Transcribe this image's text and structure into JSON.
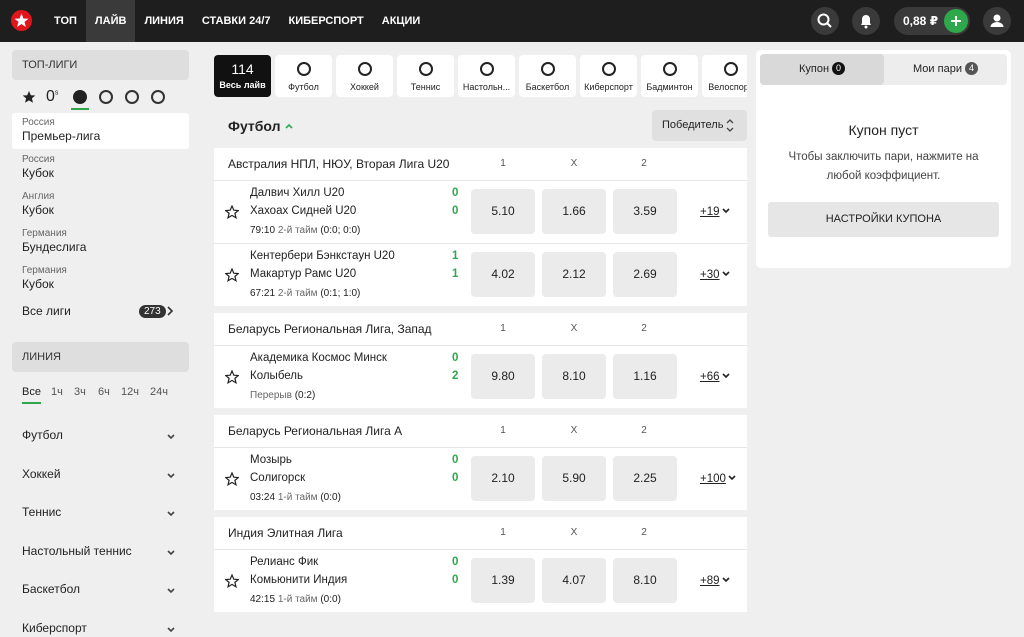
{
  "nav": {
    "items": [
      "ТОП",
      "ЛАЙВ",
      "ЛИНИЯ",
      "СТАВКИ 24/7",
      "КИБЕРСПОРТ",
      "АКЦИИ"
    ],
    "active": 1,
    "balance": "0,88 ₽"
  },
  "sidebar": {
    "top_title": "ТОП-ЛИГИ",
    "filter_count": "0",
    "filter_suffix": "s",
    "leagues": [
      {
        "country": "Россия",
        "name": "Премьер-лига"
      },
      {
        "country": "Россия",
        "name": "Кубок"
      },
      {
        "country": "Англия",
        "name": "Кубок"
      },
      {
        "country": "Германия",
        "name": "Бундеслига"
      },
      {
        "country": "Германия",
        "name": "Кубок"
      }
    ],
    "all_leagues": "Все лиги",
    "all_count": "273",
    "line_title": "ЛИНИЯ",
    "periods": [
      "Все",
      "1ч",
      "3ч",
      "6ч",
      "12ч",
      "24ч"
    ],
    "sports": [
      "Футбол",
      "Хоккей",
      "Теннис",
      "Настольный теннис",
      "Баскетбол",
      "Киберспорт"
    ]
  },
  "sport_tabs": {
    "live_count": "114",
    "live_label": "Весь лайв",
    "items": [
      "Футбол",
      "Хоккей",
      "Теннис",
      "Настольн...",
      "Баскетбол",
      "Киберспорт",
      "Бадминтон",
      "Велоспорт"
    ]
  },
  "section": {
    "title": "Футбол",
    "market": "Победитель"
  },
  "leagues": [
    {
      "name": "Австралия НПЛ, НЮУ, Вторая Лига U20",
      "cols": [
        "1",
        "X",
        "2"
      ],
      "matches": [
        {
          "team1": "Далвич Хилл U20",
          "team2": "Хахоах Сидней U20",
          "score1": "0",
          "score2": "0",
          "time": "79:10",
          "period": "2-й тайм",
          "detail": "(0:0; 0:0)",
          "odds": [
            "5.10",
            "1.66",
            "3.59"
          ],
          "more": "+19"
        },
        {
          "team1": "Кентербери Бэнкстаун U20",
          "team2": "Макартур Рамс U20",
          "score1": "1",
          "score2": "1",
          "time": "67:21",
          "period": "2-й тайм",
          "detail": "(0:1; 1:0)",
          "odds": [
            "4.02",
            "2.12",
            "2.69"
          ],
          "more": "+30"
        }
      ]
    },
    {
      "name": "Беларусь Региональная Лига, Запад",
      "cols": [
        "1",
        "X",
        "2"
      ],
      "matches": [
        {
          "team1": "Академика Космос Минск",
          "team2": "Колыбель",
          "score1": "0",
          "score2": "2",
          "period": "Перерыв",
          "detail": "(0:2)",
          "odds": [
            "9.80",
            "8.10",
            "1.16"
          ],
          "more": "+66"
        }
      ]
    },
    {
      "name": "Беларусь Региональная Лига А",
      "cols": [
        "1",
        "X",
        "2"
      ],
      "matches": [
        {
          "team1": "Мозырь",
          "team2": "Солигорск",
          "score1": "0",
          "score2": "0",
          "time": "03:24",
          "period": "1-й тайм",
          "detail": "(0:0)",
          "odds": [
            "2.10",
            "5.90",
            "2.25"
          ],
          "more": "+100"
        }
      ]
    },
    {
      "name": "Индия Элитная Лига",
      "cols": [
        "1",
        "X",
        "2"
      ],
      "matches": [
        {
          "team1": "Релианс Фик",
          "team2": "Комьюнити Индия",
          "score1": "0",
          "score2": "0",
          "time": "42:15",
          "period": "1-й тайм",
          "detail": "(0:0)",
          "odds": [
            "1.39",
            "4.07",
            "8.10"
          ],
          "more": "+89"
        }
      ]
    }
  ],
  "coupon": {
    "tab": "Купон",
    "tab_count": "0",
    "bets_tab": "Мои пари",
    "bets_count": "4",
    "empty_title": "Купон пуст",
    "empty_text": "Чтобы заключить пари, нажмите на любой коэффициент.",
    "settings": "НАСТРОЙКИ КУПОНА"
  }
}
